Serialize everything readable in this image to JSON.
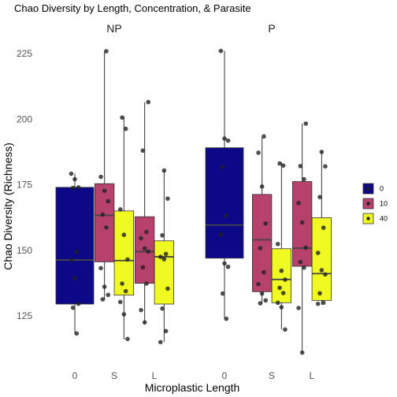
{
  "chart_data": {
    "type": "box",
    "title": "Chao Diversity by Length, Concentration, & Parasite",
    "xlabel": "Microplastic Length",
    "ylabel": "Chao Diversity (Richness)",
    "ylim": [
      105,
      232
    ],
    "yticks": [
      125,
      150,
      175,
      200,
      225
    ],
    "grid": false,
    "legend_position": "right",
    "facets": [
      "NP",
      "P"
    ],
    "categories": [
      "0",
      "S",
      "L"
    ],
    "series": [
      {
        "name": "0",
        "color": "#0D0887"
      },
      {
        "name": "10",
        "color": "#B5416C"
      },
      {
        "name": "40",
        "color": "#F0F921"
      }
    ],
    "boxes": [
      {
        "facet": "NP",
        "category": "0",
        "series": "0",
        "q1": 129.5,
        "median": 146.3,
        "q3": 174.0,
        "whisker_low": 118,
        "whisker_high": 179.2,
        "points": [
          179.2,
          177.1,
          174.0,
          173.8,
          149.4,
          146.3,
          139.4,
          129.6,
          128.1,
          118.3
        ]
      },
      {
        "facet": "NP",
        "category": "S",
        "series": "10",
        "q1": 145.6,
        "median": 163.3,
        "q3": 175.4,
        "whisker_low": 131,
        "whisker_high": 226,
        "points": [
          225.9,
          178.0,
          172.7,
          168.7,
          163.6,
          158.7,
          143.2,
          136.1,
          133.0,
          131.3
        ]
      },
      {
        "facet": "NP",
        "category": "S",
        "series": "40",
        "q1": 132.9,
        "median": 146.1,
        "q3": 165.0,
        "whisker_low": 116,
        "whisker_high": 201,
        "points": [
          200.6,
          196.3,
          165.6,
          155.9,
          146.5,
          137.3,
          134.4,
          130.3,
          125.6,
          116.2
        ]
      },
      {
        "facet": "NP",
        "category": "L",
        "series": "10",
        "q1": 137.4,
        "median": 149.5,
        "q3": 162.8,
        "whisker_low": 122,
        "whisker_high": 206.5,
        "points": [
          206.5,
          188.0,
          157.0,
          154.6,
          150.7,
          149.5,
          143.5,
          137.3,
          127.2,
          122.5
        ]
      },
      {
        "facet": "NP",
        "category": "L",
        "series": "40",
        "q1": 129.5,
        "median": 147.5,
        "q3": 153.6,
        "whisker_low": 115,
        "whisker_high": 180.5,
        "points": [
          180.4,
          169.7,
          155.7,
          148.6,
          147.5,
          146.6,
          135.4,
          127.8,
          119.2,
          115.0
        ]
      },
      {
        "facet": "P",
        "category": "0",
        "series": "0",
        "q1": 147.0,
        "median": 159.6,
        "q3": 189.1,
        "whisker_low": 124,
        "whisker_high": 226,
        "points": [
          226.0,
          192.6,
          191.8,
          181.7,
          163.2,
          156.0,
          145.0,
          143.7,
          133.5,
          123.9
        ]
      },
      {
        "facet": "P",
        "category": "S",
        "series": "10",
        "q1": 134.2,
        "median": 154.0,
        "q3": 171.3,
        "whisker_low": 129.5,
        "whisker_high": 193,
        "points": [
          193.4,
          187.2,
          174.3,
          160.2,
          150.8,
          141.6,
          137.1,
          133.5,
          130.9,
          129.8
        ]
      },
      {
        "facet": "P",
        "category": "S",
        "series": "40",
        "q1": 130.0,
        "median": 138.9,
        "q3": 150.6,
        "whisker_low": 119.8,
        "whisker_high": 183.5,
        "points": [
          183.1,
          182.3,
          152.4,
          142.2,
          138.8,
          135.7,
          133.7,
          130.0,
          128.3,
          119.8
        ]
      },
      {
        "facet": "P",
        "category": "L",
        "series": "10",
        "q1": 143.9,
        "median": 150.8,
        "q3": 176.2,
        "whisker_low": 111,
        "whisker_high": 198.3,
        "points": [
          198.3,
          182.1,
          177.1,
          168.0,
          160.6,
          151.0,
          145.5,
          143.4,
          128.0,
          111.0
        ]
      },
      {
        "facet": "P",
        "category": "L",
        "series": "40",
        "q1": 130.9,
        "median": 141.1,
        "q3": 162.4,
        "whisker_low": 129.3,
        "whisker_high": 187.8,
        "points": [
          187.5,
          182.0,
          170.3,
          158.6,
          149.0,
          142.4,
          140.8,
          133.6,
          130.0,
          129.6
        ]
      }
    ]
  }
}
